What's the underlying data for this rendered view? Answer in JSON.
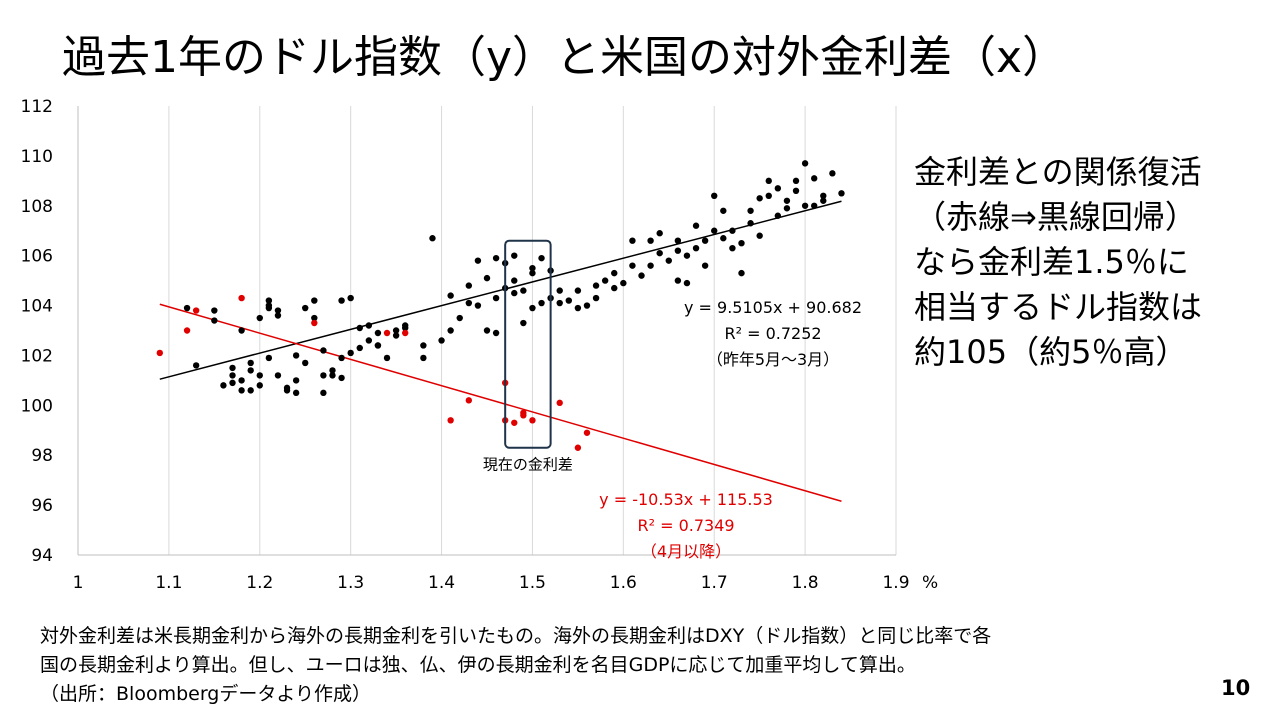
{
  "slide": {
    "title": "過去1年のドル指数（y）と米国の対外金利差（x）",
    "note_lines": [
      "金利差との関係復活",
      "（赤線⇒黒線回帰）",
      "なら金利差1.5％に",
      "相当するドル指数は",
      "約105（約5％高）"
    ],
    "footer_lines": [
      "対外金利差は米長期金利から海外の長期金利を引いたもの。海外の長期金利はDXY（ドル指数）と同じ比率で各",
      "国の長期金利より算出。但し、ユーロは独、仏、伊の長期金利を名目GDPに応じて加重平均して算出。",
      "（出所：Bloombergデータより作成）"
    ],
    "page_number": "10"
  },
  "colors": {
    "black_series": "#000000",
    "red_series": "#e00000",
    "grid": "#d9d9d9",
    "box": "#1f3349"
  },
  "chart_data": {
    "type": "scatter",
    "title": "",
    "xlabel": "%",
    "ylabel": "",
    "xlim": [
      1.0,
      1.9
    ],
    "ylim": [
      94,
      112
    ],
    "x_ticks": [
      "1",
      "1.1",
      "1.2",
      "1.3",
      "1.4",
      "1.5",
      "1.6",
      "1.7",
      "1.8",
      "1.9"
    ],
    "y_ticks": [
      "94",
      "96",
      "98",
      "100",
      "102",
      "104",
      "106",
      "108",
      "110",
      "112"
    ],
    "grid": "vertical",
    "annotations": {
      "current_spread_label": "現在の金利差",
      "current_spread_range": {
        "x": [
          1.47,
          1.52
        ],
        "y": [
          98.3,
          106.6
        ]
      }
    },
    "series": [
      {
        "name": "昨年5月～3月",
        "color": "black",
        "trendline": {
          "slope": 9.5105,
          "intercept": 90.682,
          "x_range": [
            1.09,
            1.84
          ]
        },
        "equation_lines": [
          "y = 9.5105x + 90.682",
          "R² = 0.7252",
          "（昨年5月～3月）"
        ],
        "points": [
          [
            1.12,
            103.9
          ],
          [
            1.13,
            101.6
          ],
          [
            1.15,
            103.8
          ],
          [
            1.15,
            103.4
          ],
          [
            1.16,
            100.8
          ],
          [
            1.17,
            101.5
          ],
          [
            1.17,
            101.2
          ],
          [
            1.17,
            100.9
          ],
          [
            1.18,
            101.0
          ],
          [
            1.18,
            100.6
          ],
          [
            1.19,
            101.4
          ],
          [
            1.19,
            101.7
          ],
          [
            1.19,
            100.6
          ],
          [
            1.2,
            100.8
          ],
          [
            1.2,
            103.5
          ],
          [
            1.21,
            101.9
          ],
          [
            1.21,
            103.9
          ],
          [
            1.21,
            104.2
          ],
          [
            1.21,
            104.0
          ],
          [
            1.22,
            103.8
          ],
          [
            1.22,
            103.6
          ],
          [
            1.23,
            100.7
          ],
          [
            1.23,
            100.6
          ],
          [
            1.24,
            101.0
          ],
          [
            1.24,
            100.5
          ],
          [
            1.24,
            102.0
          ],
          [
            1.25,
            101.7
          ],
          [
            1.25,
            103.9
          ],
          [
            1.26,
            104.2
          ],
          [
            1.27,
            100.5
          ],
          [
            1.27,
            101.2
          ],
          [
            1.27,
            102.2
          ],
          [
            1.28,
            101.2
          ],
          [
            1.28,
            101.4
          ],
          [
            1.29,
            101.9
          ],
          [
            1.29,
            104.2
          ],
          [
            1.3,
            104.3
          ],
          [
            1.3,
            102.1
          ],
          [
            1.31,
            103.1
          ],
          [
            1.32,
            102.6
          ],
          [
            1.32,
            103.2
          ],
          [
            1.33,
            102.4
          ],
          [
            1.33,
            102.4
          ],
          [
            1.33,
            102.9
          ],
          [
            1.34,
            101.9
          ],
          [
            1.35,
            102.8
          ],
          [
            1.35,
            103.0
          ],
          [
            1.36,
            103.1
          ],
          [
            1.36,
            103.2
          ],
          [
            1.38,
            102.4
          ],
          [
            1.38,
            101.9
          ],
          [
            1.39,
            106.7
          ],
          [
            1.4,
            102.6
          ],
          [
            1.41,
            103.0
          ],
          [
            1.41,
            104.4
          ],
          [
            1.43,
            104.1
          ],
          [
            1.44,
            104.0
          ],
          [
            1.44,
            105.8
          ],
          [
            1.45,
            103.0
          ],
          [
            1.46,
            102.9
          ],
          [
            1.46,
            104.3
          ],
          [
            1.47,
            104.7
          ],
          [
            1.47,
            105.7
          ],
          [
            1.48,
            104.5
          ],
          [
            1.48,
            105.0
          ],
          [
            1.49,
            103.3
          ],
          [
            1.49,
            104.6
          ],
          [
            1.5,
            105.3
          ],
          [
            1.5,
            105.5
          ],
          [
            1.51,
            104.1
          ],
          [
            1.52,
            104.3
          ],
          [
            1.52,
            105.4
          ],
          [
            1.53,
            104.1
          ],
          [
            1.54,
            104.2
          ],
          [
            1.55,
            103.9
          ],
          [
            1.56,
            104.0
          ],
          [
            1.57,
            104.3
          ],
          [
            1.58,
            105.0
          ],
          [
            1.59,
            104.7
          ],
          [
            1.6,
            104.9
          ],
          [
            1.61,
            106.6
          ],
          [
            1.62,
            105.2
          ],
          [
            1.63,
            105.6
          ],
          [
            1.64,
            106.1
          ],
          [
            1.65,
            105.8
          ],
          [
            1.66,
            106.2
          ],
          [
            1.66,
            105.0
          ],
          [
            1.67,
            104.9
          ],
          [
            1.68,
            106.3
          ],
          [
            1.68,
            107.2
          ],
          [
            1.69,
            106.6
          ],
          [
            1.7,
            107.0
          ],
          [
            1.71,
            107.8
          ],
          [
            1.72,
            106.3
          ],
          [
            1.73,
            105.3
          ],
          [
            1.73,
            106.5
          ],
          [
            1.74,
            107.8
          ],
          [
            1.75,
            106.8
          ],
          [
            1.76,
            108.4
          ],
          [
            1.76,
            109.0
          ],
          [
            1.77,
            107.6
          ],
          [
            1.78,
            108.2
          ],
          [
            1.79,
            109.0
          ],
          [
            1.8,
            108.0
          ],
          [
            1.8,
            109.7
          ],
          [
            1.81,
            109.1
          ],
          [
            1.82,
            108.4
          ],
          [
            1.82,
            108.2
          ],
          [
            1.83,
            109.3
          ],
          [
            1.84,
            108.5
          ],
          [
            1.42,
            103.5
          ],
          [
            1.43,
            104.8
          ],
          [
            1.45,
            105.1
          ],
          [
            1.46,
            105.9
          ],
          [
            1.48,
            106.0
          ],
          [
            1.5,
            103.9
          ],
          [
            1.51,
            105.9
          ],
          [
            1.53,
            104.6
          ],
          [
            1.55,
            104.6
          ],
          [
            1.57,
            104.8
          ],
          [
            1.59,
            105.3
          ],
          [
            1.61,
            105.6
          ],
          [
            1.63,
            106.6
          ],
          [
            1.64,
            106.9
          ],
          [
            1.66,
            106.6
          ],
          [
            1.67,
            106.0
          ],
          [
            1.69,
            105.6
          ],
          [
            1.7,
            108.4
          ],
          [
            1.71,
            106.7
          ],
          [
            1.72,
            107.0
          ],
          [
            1.74,
            107.3
          ],
          [
            1.75,
            108.3
          ],
          [
            1.77,
            108.7
          ],
          [
            1.78,
            107.9
          ],
          [
            1.79,
            108.6
          ],
          [
            1.81,
            108.0
          ],
          [
            1.18,
            103.0
          ],
          [
            1.2,
            101.2
          ],
          [
            1.22,
            101.2
          ],
          [
            1.26,
            103.5
          ],
          [
            1.29,
            101.1
          ],
          [
            1.31,
            102.3
          ]
        ]
      },
      {
        "name": "4月以降",
        "color": "red",
        "trendline": {
          "slope": -10.53,
          "intercept": 115.53,
          "x_range": [
            1.09,
            1.84
          ]
        },
        "equation_lines": [
          "y = -10.53x + 115.53",
          "R² = 0.7349",
          "（4月以降）"
        ],
        "points": [
          [
            1.09,
            102.1
          ],
          [
            1.12,
            103.0
          ],
          [
            1.13,
            103.8
          ],
          [
            1.18,
            104.3
          ],
          [
            1.26,
            103.3
          ],
          [
            1.34,
            102.9
          ],
          [
            1.36,
            102.9
          ],
          [
            1.41,
            99.4
          ],
          [
            1.43,
            100.2
          ],
          [
            1.47,
            100.9
          ],
          [
            1.47,
            99.4
          ],
          [
            1.48,
            99.3
          ],
          [
            1.49,
            99.7
          ],
          [
            1.49,
            99.6
          ],
          [
            1.5,
            99.4
          ],
          [
            1.53,
            100.1
          ],
          [
            1.55,
            98.3
          ],
          [
            1.56,
            98.9
          ]
        ]
      }
    ]
  }
}
